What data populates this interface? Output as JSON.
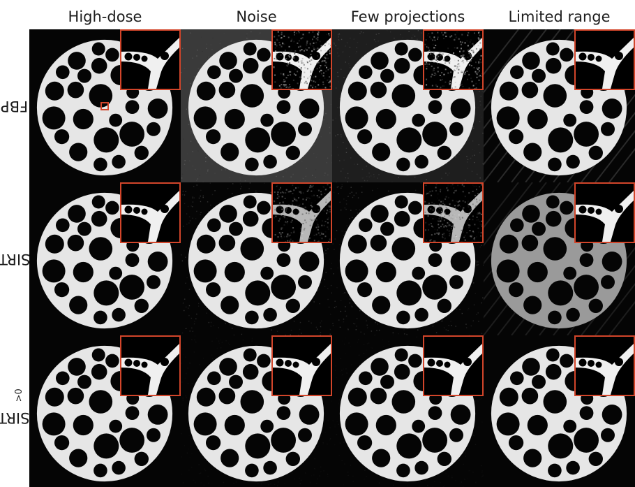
{
  "columns": [
    {
      "label": "High-dose"
    },
    {
      "label": "Noise"
    },
    {
      "label": "Few projections"
    },
    {
      "label": "Limited range"
    }
  ],
  "rows": [
    {
      "label": "FBP",
      "sub": ""
    },
    {
      "label": "SIRT",
      "sub": ""
    },
    {
      "label": "SIRT",
      "sub": ">0"
    }
  ],
  "colors": {
    "inset_border": "#d2452a",
    "background": "#050505",
    "foreground": "#e8e8e8"
  }
}
